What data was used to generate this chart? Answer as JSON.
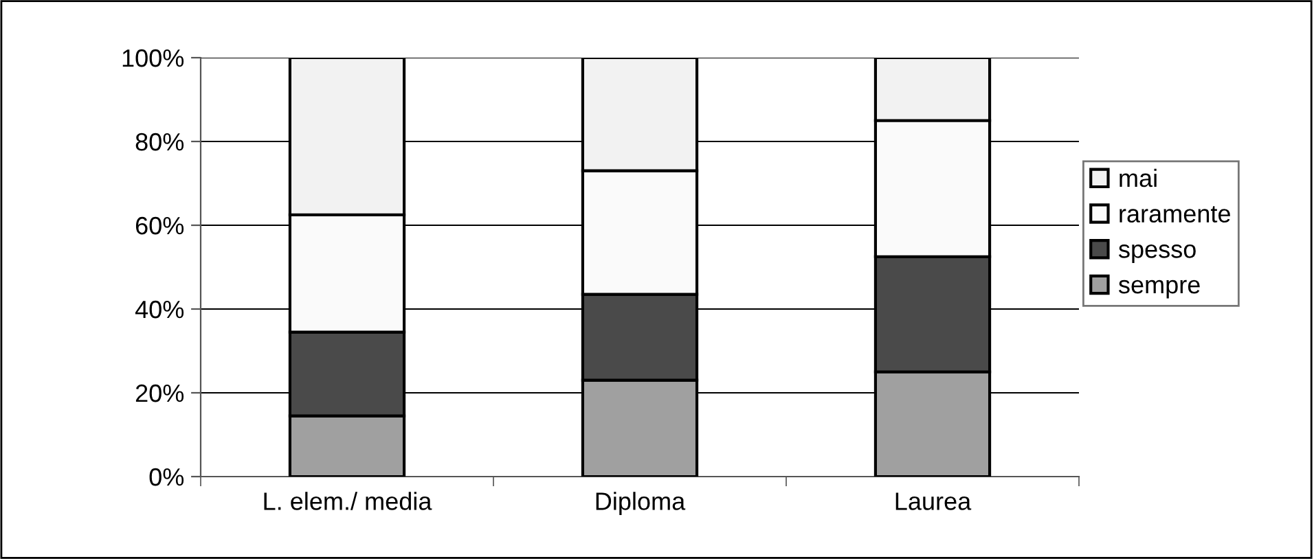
{
  "chart_data": {
    "type": "bar",
    "stacked": true,
    "categories": [
      "L. elem./ media",
      "Diploma",
      "Laurea"
    ],
    "series": [
      {
        "name": "sempre",
        "color": "#a0a0a0",
        "values": [
          14.5,
          23,
          25
        ]
      },
      {
        "name": "spesso",
        "color": "#4a4a4a",
        "values": [
          20,
          20.5,
          27.5
        ]
      },
      {
        "name": "raramente",
        "color": "#fafafa",
        "values": [
          28,
          29.5,
          32.5
        ]
      },
      {
        "name": "mai",
        "color": "#f2f2f2",
        "values": [
          37.5,
          27,
          15
        ]
      }
    ],
    "ylim": [
      0,
      100
    ],
    "yticks": [
      {
        "value": 0,
        "label": "0%"
      },
      {
        "value": 20,
        "label": "20%"
      },
      {
        "value": 40,
        "label": "40%"
      },
      {
        "value": 60,
        "label": "60%"
      },
      {
        "value": 80,
        "label": "80%"
      },
      {
        "value": 100,
        "label": "100%"
      }
    ],
    "grid": "y",
    "legend": "right"
  }
}
